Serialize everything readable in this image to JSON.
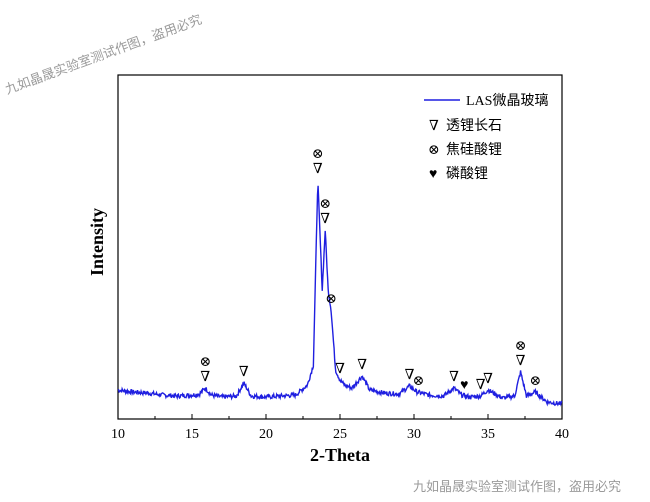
{
  "watermark": {
    "top": "九如晶晟实验室测试作图，盗用必究",
    "bottom": "九如晶晟实验室测试作图，盗用必究"
  },
  "chart_data": {
    "type": "line",
    "xlabel": "2-Theta",
    "ylabel": "Intensity",
    "xlim": [
      10,
      40
    ],
    "x_ticks": [
      10,
      15,
      20,
      25,
      30,
      35,
      40
    ],
    "y_ticks_shown": false,
    "grid": false,
    "legend_position": "top-right",
    "series": [
      {
        "name": "LAS微晶玻璃",
        "color": "#1f1fe0",
        "x": [
          10.0,
          11.0,
          12.0,
          13.0,
          14.0,
          15.0,
          15.5,
          15.9,
          16.3,
          17.0,
          18.0,
          18.5,
          19.0,
          20.0,
          21.0,
          22.0,
          22.8,
          23.2,
          23.5,
          23.8,
          24.0,
          24.2,
          24.4,
          24.7,
          25.0,
          25.3,
          25.8,
          26.5,
          27.0,
          28.0,
          29.0,
          29.7,
          30.2,
          31.0,
          32.0,
          32.7,
          33.2,
          33.8,
          34.5,
          35.0,
          36.0,
          36.8,
          37.2,
          37.6,
          38.2,
          39.0,
          40.0
        ],
        "y": [
          20,
          18,
          17,
          15,
          14,
          15,
          16,
          22,
          15,
          13,
          14,
          27,
          14,
          13,
          14,
          15,
          25,
          45,
          230,
          120,
          180,
          120,
          100,
          40,
          30,
          25,
          22,
          34,
          20,
          17,
          16,
          24,
          18,
          15,
          14,
          22,
          15,
          13,
          14,
          20,
          12,
          14,
          38,
          14,
          18,
          8,
          6
        ]
      }
    ],
    "legend_entries": [
      {
        "symbol": "line",
        "label": "LAS微晶玻璃"
      },
      {
        "symbol": "∇",
        "label": "透锂长石"
      },
      {
        "symbol": "⊗",
        "label": "焦硅酸锂"
      },
      {
        "symbol": "♥",
        "label": "磷酸锂"
      }
    ],
    "peak_annotations": [
      {
        "x": 15.9,
        "y": 22,
        "symbols": [
          "⊗",
          "∇"
        ]
      },
      {
        "x": 18.5,
        "y": 27,
        "symbols": [
          "∇"
        ]
      },
      {
        "x": 23.5,
        "y": 230,
        "symbols": [
          "⊗",
          "∇"
        ]
      },
      {
        "x": 24.0,
        "y": 180,
        "symbols": [
          "⊗",
          "∇"
        ]
      },
      {
        "x": 24.4,
        "y": 100,
        "symbols": [
          "⊗"
        ]
      },
      {
        "x": 25.0,
        "y": 30,
        "symbols": [
          "∇"
        ]
      },
      {
        "x": 26.5,
        "y": 34,
        "symbols": [
          "∇"
        ]
      },
      {
        "x": 29.7,
        "y": 24,
        "symbols": [
          "∇"
        ]
      },
      {
        "x": 30.3,
        "y": 18,
        "symbols": [
          "⊗"
        ]
      },
      {
        "x": 32.7,
        "y": 22,
        "symbols": [
          "∇"
        ]
      },
      {
        "x": 33.4,
        "y": 14,
        "symbols": [
          "♥"
        ]
      },
      {
        "x": 34.5,
        "y": 14,
        "symbols": [
          "∇"
        ]
      },
      {
        "x": 35.0,
        "y": 20,
        "symbols": [
          "∇"
        ]
      },
      {
        "x": 37.2,
        "y": 38,
        "symbols": [
          "⊗",
          "∇"
        ]
      },
      {
        "x": 38.2,
        "y": 18,
        "symbols": [
          "⊗"
        ]
      }
    ]
  }
}
